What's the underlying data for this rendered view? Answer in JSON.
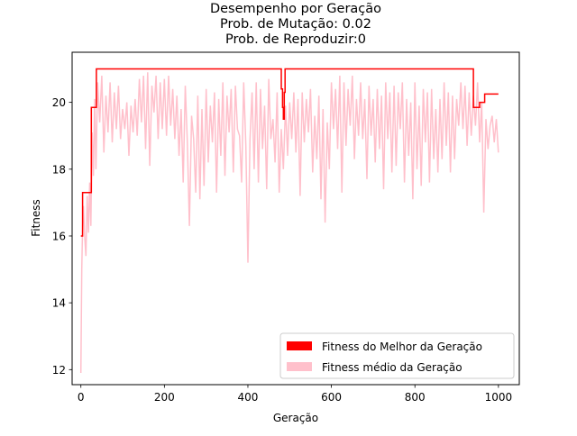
{
  "chart_data": {
    "type": "line",
    "title_lines": [
      "Desempenho por Geração",
      "Prob. de Mutação: 0.02",
      "Prob. de Reproduzir:0"
    ],
    "xlabel": "Geração",
    "ylabel": "Fitness",
    "xlim": [
      -21,
      1050
    ],
    "ylim": [
      11.55,
      21.5
    ],
    "xticks": [
      0,
      200,
      400,
      600,
      800,
      1000
    ],
    "yticks": [
      12,
      14,
      16,
      18,
      20
    ],
    "legend_position": "lower-right",
    "grid": false,
    "series": [
      {
        "name": "Fitness do Melhor da Geração",
        "color": "#ff0000",
        "step": true,
        "x": [
          0,
          4,
          25,
          37,
          478,
          480,
          483,
          485,
          487,
          489,
          936,
          940,
          950,
          955,
          967,
          1000
        ],
        "y": [
          16.0,
          17.3,
          19.85,
          21.0,
          21.0,
          20.4,
          19.85,
          19.5,
          20.3,
          21.0,
          21.0,
          19.85,
          19.85,
          20.0,
          20.25,
          20.25
        ]
      },
      {
        "name": "Fitness médio da Geração",
        "color": "#ffc0cb",
        "x": [
          0,
          2,
          4,
          6,
          9,
          12,
          15,
          18,
          21,
          24,
          27,
          30,
          33,
          36,
          40,
          45,
          50,
          55,
          60,
          65,
          70,
          75,
          80,
          85,
          90,
          95,
          100,
          105,
          110,
          115,
          120,
          125,
          130,
          135,
          140,
          145,
          150,
          155,
          160,
          165,
          170,
          175,
          180,
          185,
          190,
          195,
          200,
          205,
          210,
          215,
          220,
          225,
          230,
          235,
          240,
          245,
          250,
          255,
          260,
          265,
          270,
          275,
          280,
          285,
          290,
          295,
          300,
          305,
          310,
          315,
          320,
          325,
          330,
          335,
          340,
          345,
          350,
          355,
          360,
          365,
          370,
          375,
          380,
          385,
          390,
          395,
          400,
          405,
          410,
          415,
          420,
          425,
          430,
          435,
          440,
          445,
          450,
          455,
          460,
          465,
          470,
          475,
          480,
          485,
          490,
          495,
          500,
          505,
          510,
          515,
          520,
          525,
          530,
          535,
          540,
          545,
          550,
          555,
          560,
          565,
          570,
          575,
          580,
          585,
          590,
          595,
          600,
          605,
          610,
          615,
          620,
          625,
          630,
          635,
          640,
          645,
          650,
          655,
          660,
          665,
          670,
          675,
          680,
          685,
          690,
          695,
          700,
          705,
          710,
          715,
          720,
          725,
          730,
          735,
          740,
          745,
          750,
          755,
          760,
          765,
          770,
          775,
          780,
          785,
          790,
          795,
          800,
          805,
          810,
          815,
          820,
          825,
          830,
          835,
          840,
          845,
          850,
          855,
          860,
          865,
          870,
          875,
          880,
          885,
          890,
          895,
          900,
          905,
          910,
          915,
          920,
          925,
          930,
          935,
          940,
          945,
          950,
          955,
          960,
          965,
          970,
          975,
          980,
          985,
          990,
          995,
          1000
        ],
        "y": [
          11.9,
          15.0,
          16.3,
          16.9,
          16.0,
          15.4,
          17.2,
          16.1,
          17.6,
          16.3,
          19.1,
          17.8,
          20.1,
          18.0,
          20.6,
          19.4,
          20.8,
          18.5,
          20.2,
          19.1,
          20.6,
          18.8,
          20.3,
          19.2,
          20.5,
          18.9,
          19.8,
          19.2,
          20.0,
          18.4,
          19.9,
          19.1,
          20.1,
          19.0,
          20.7,
          19.4,
          20.8,
          18.6,
          20.9,
          18.1,
          20.5,
          19.7,
          20.8,
          18.9,
          20.6,
          19.2,
          20.7,
          19.0,
          20.8,
          19.3,
          20.4,
          18.9,
          20.2,
          18.4,
          19.8,
          17.6,
          20.5,
          18.8,
          16.3,
          19.6,
          18.9,
          17.3,
          20.2,
          17.1,
          19.8,
          17.5,
          20.4,
          18.2,
          19.9,
          18.8,
          20.3,
          17.3,
          20.1,
          18.4,
          20.6,
          17.8,
          20.2,
          19.1,
          20.4,
          17.9,
          20.5,
          19.2,
          19.0,
          17.6,
          20.6,
          18.7,
          15.2,
          18.9,
          20.3,
          18.0,
          20.6,
          17.6,
          20.4,
          18.6,
          19.9,
          17.4,
          20.7,
          18.9,
          19.5,
          18.2,
          20.3,
          17.3,
          19.2,
          18.0,
          19.9,
          18.4,
          20.0,
          18.9,
          20.3,
          18.5,
          20.1,
          17.2,
          20.3,
          18.8,
          20.1,
          19.1,
          20.4,
          17.9,
          19.6,
          18.3,
          20.2,
          17.1,
          19.8,
          16.4,
          19.4,
          18.0,
          20.6,
          19.2,
          20.4,
          18.6,
          20.8,
          17.3,
          20.6,
          18.7,
          20.4,
          19.3,
          20.8,
          18.3,
          20.1,
          19.0,
          20.6,
          18.9,
          20.1,
          17.7,
          20.5,
          19.0,
          20.1,
          18.2,
          20.4,
          18.6,
          20.2,
          17.4,
          20.6,
          18.9,
          20.3,
          17.9,
          20.5,
          18.1,
          20.3,
          19.2,
          20.6,
          17.6,
          20.1,
          18.4,
          20.0,
          17.1,
          20.6,
          18.0,
          19.9,
          17.5,
          20.4,
          18.8,
          20.3,
          17.6,
          20.4,
          18.3,
          19.8,
          17.9,
          20.1,
          18.3,
          20.6,
          18.7,
          20.3,
          17.9,
          20.2,
          18.3,
          20.1,
          19.3,
          20.6,
          19.2,
          20.5,
          18.7,
          20.3,
          19.0,
          20.2,
          19.3,
          20.6,
          18.8,
          20.0,
          16.7,
          19.5,
          18.6,
          19.3,
          19.6,
          18.8,
          19.5,
          18.5
        ]
      }
    ]
  }
}
